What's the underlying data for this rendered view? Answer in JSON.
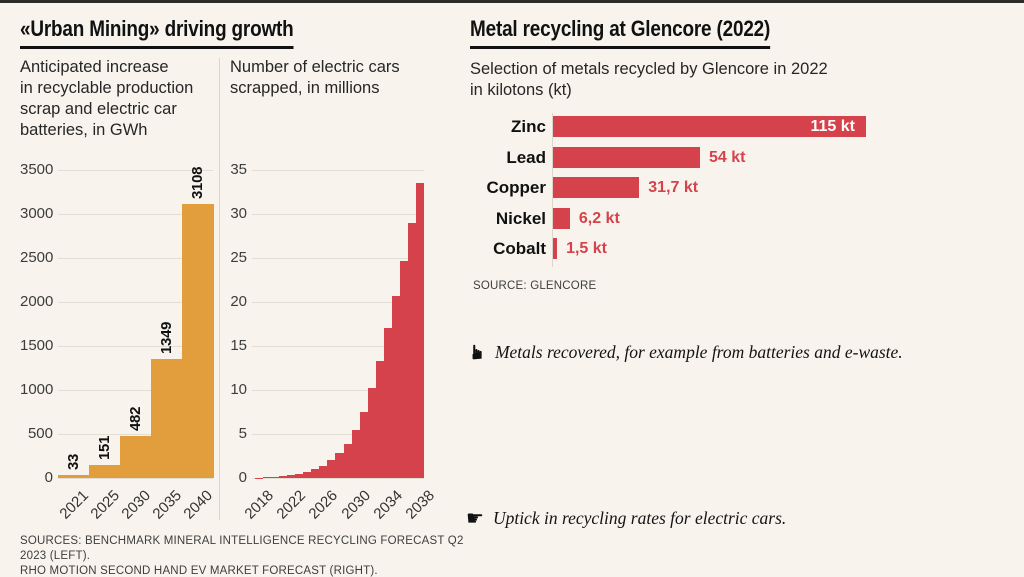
{
  "colors": {
    "background": "#f8f4ed",
    "orange": "#e29e3d",
    "red": "#d5424b",
    "grid": "#e3ded3",
    "ink": "#111111"
  },
  "left_panel": {
    "title": "«Urban Mining» driving growth",
    "col1_subtitle": "Anticipated increase\nin recyclable production\nscrap and electric car\nbatteries, in GWh",
    "col2_subtitle": "Number of electric cars\nscrapped, in millions",
    "sources": "SOURCES: BENCHMARK MINERAL INTELLIGENCE RECYCLING FORECAST Q2 2023 (LEFT).\nRHO MOTION SECOND HAND EV MARKET FORECAST (RIGHT)."
  },
  "right_panel": {
    "title": "Metal recycling at Glencore (2022)",
    "subtitle": "Selection of metals recycled by Glencore in 2022\nin kilotons (kt)",
    "source": "SOURCE: GLENCORE",
    "annotations": [
      {
        "icon": "manicule-up-icon",
        "icon_glyph": "☛",
        "text": "Metals recovered, for example from batteries and e-waste."
      },
      {
        "icon": "manicule-right-icon",
        "icon_glyph": "☛",
        "text": "Uptick in recycling rates for electric cars."
      }
    ]
  },
  "chart_data": [
    {
      "type": "bar",
      "title": "Anticipated increase in recyclable production scrap and electric car batteries, in GWh",
      "categories": [
        "2021",
        "2025",
        "2030",
        "2035",
        "2040"
      ],
      "values": [
        33,
        151,
        482,
        1349,
        3108
      ],
      "value_labels": [
        "33",
        "151",
        "482",
        "1349",
        "3108"
      ],
      "ylabel": "GWh",
      "ylim": [
        0,
        3500
      ],
      "ytick_step": 500,
      "grid": true,
      "bar_color": "#e29e3d"
    },
    {
      "type": "bar",
      "title": "Number of electric cars scrapped, in millions",
      "x": [
        2018,
        2019,
        2020,
        2021,
        2022,
        2023,
        2024,
        2025,
        2026,
        2027,
        2028,
        2029,
        2030,
        2031,
        2032,
        2033,
        2034,
        2035,
        2036,
        2037,
        2038
      ],
      "values": [
        0.05,
        0.1,
        0.15,
        0.25,
        0.35,
        0.5,
        0.7,
        1.0,
        1.4,
        2.0,
        2.8,
        3.9,
        5.4,
        7.5,
        10.2,
        13.3,
        17.0,
        20.7,
        24.7,
        29.0,
        33.5
      ],
      "xtick_labels": [
        "2018",
        "2022",
        "2026",
        "2030",
        "2034",
        "2038"
      ],
      "xtick_indices": [
        0,
        4,
        8,
        12,
        16,
        20
      ],
      "ylabel": "millions of cars",
      "ylim": [
        0,
        35
      ],
      "ytick_step": 5,
      "grid": true,
      "bar_color": "#d5424b"
    },
    {
      "type": "bar",
      "orientation": "horizontal",
      "title": "Selection of metals recycled by Glencore in 2022 in kilotons (kt)",
      "categories": [
        "Zinc",
        "Lead",
        "Copper",
        "Nickel",
        "Cobalt"
      ],
      "values": [
        115,
        54,
        31.7,
        6.2,
        1.5
      ],
      "value_labels": [
        "115 kt",
        "54 kt",
        "31,7 kt",
        "6,2 kt",
        "1,5 kt"
      ],
      "xlim": [
        0,
        115
      ],
      "grid": false,
      "bar_color": "#d5424b",
      "value_label_inside": [
        true,
        false,
        false,
        false,
        false
      ]
    }
  ]
}
